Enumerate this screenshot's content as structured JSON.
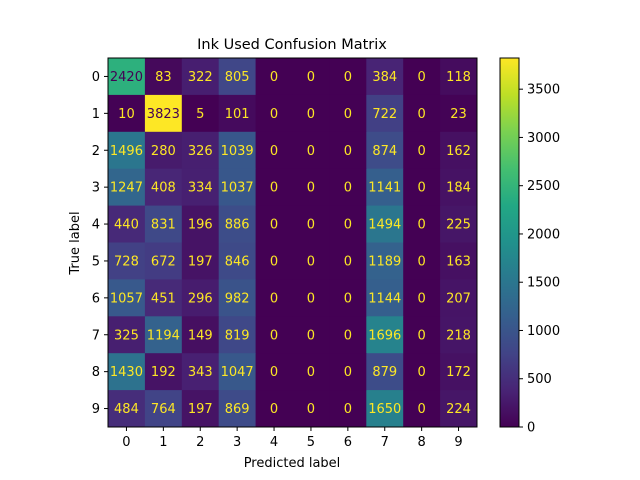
{
  "chart_data": {
    "type": "heatmap",
    "title": "Ink Used Confusion Matrix",
    "xlabel": "Predicted label",
    "ylabel": "True label",
    "x_categories": [
      "0",
      "1",
      "2",
      "3",
      "4",
      "5",
      "6",
      "7",
      "8",
      "9"
    ],
    "y_categories": [
      "0",
      "1",
      "2",
      "3",
      "4",
      "5",
      "6",
      "7",
      "8",
      "9"
    ],
    "values": [
      [
        2420,
        83,
        322,
        805,
        0,
        0,
        0,
        384,
        0,
        118
      ],
      [
        10,
        3823,
        5,
        101,
        0,
        0,
        0,
        722,
        0,
        23
      ],
      [
        1496,
        280,
        326,
        1039,
        0,
        0,
        0,
        874,
        0,
        162
      ],
      [
        1247,
        408,
        334,
        1037,
        0,
        0,
        0,
        1141,
        0,
        184
      ],
      [
        440,
        831,
        196,
        886,
        0,
        0,
        0,
        1494,
        0,
        225
      ],
      [
        728,
        672,
        197,
        846,
        0,
        0,
        0,
        1189,
        0,
        163
      ],
      [
        1057,
        451,
        296,
        982,
        0,
        0,
        0,
        1144,
        0,
        207
      ],
      [
        325,
        1194,
        149,
        819,
        0,
        0,
        0,
        1696,
        0,
        218
      ],
      [
        1430,
        192,
        343,
        1047,
        0,
        0,
        0,
        879,
        0,
        172
      ],
      [
        484,
        764,
        197,
        869,
        0,
        0,
        0,
        1650,
        0,
        224
      ]
    ],
    "colormap": "viridis",
    "color_range": [
      0,
      3823
    ],
    "colorbar_ticks": [
      0,
      500,
      1000,
      1500,
      2000,
      2500,
      3000,
      3500
    ],
    "cell_text_color_low": "#fde725",
    "cell_text_color_high": "#440154"
  }
}
